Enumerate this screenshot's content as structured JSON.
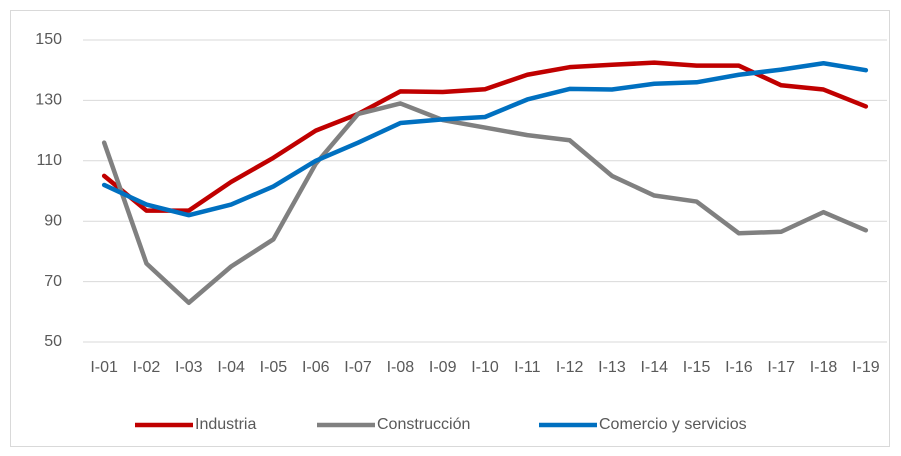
{
  "chart_data": {
    "type": "line",
    "categories": [
      "I-01",
      "I-02",
      "I-03",
      "I-04",
      "I-05",
      "I-06",
      "I-07",
      "I-08",
      "I-09",
      "I-10",
      "I-11",
      "I-12",
      "I-13",
      "I-14",
      "I-15",
      "I-16",
      "I-17",
      "I-18",
      "I-19"
    ],
    "series": [
      {
        "name": "Industria",
        "color": "#c00000",
        "values": [
          105,
          93.5,
          93.5,
          103,
          111,
          120,
          125.5,
          133,
          132.8,
          133.7,
          138.5,
          141,
          141.8,
          142.5,
          141.5,
          141.5,
          135,
          133.6,
          128
        ]
      },
      {
        "name": "Construcción",
        "color": "#808080",
        "values": [
          116,
          76,
          63,
          75,
          84,
          109,
          125.5,
          129,
          123.5,
          121,
          118.5,
          116.8,
          105,
          98.5,
          96.5,
          86,
          86.5,
          93,
          87
        ]
      },
      {
        "name": "Comercio y servicios",
        "color": "#0070c0",
        "values": [
          102,
          95.5,
          92,
          95.5,
          101.5,
          110,
          116,
          122.5,
          123.7,
          124.5,
          130.3,
          133.8,
          133.6,
          135.5,
          136,
          138.5,
          140.2,
          142.3,
          140
        ]
      }
    ],
    "ylim": [
      50,
      150
    ],
    "yticks": [
      50,
      70,
      90,
      110,
      130,
      150
    ],
    "grid": true,
    "legend": "bottom"
  }
}
